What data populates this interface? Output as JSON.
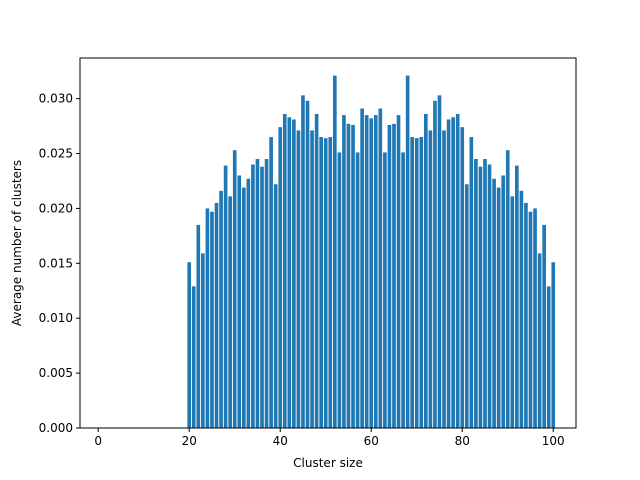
{
  "chart_data": {
    "type": "bar",
    "title": "",
    "xlabel": "Cluster size",
    "ylabel": "Average number of clusters",
    "xlim": [
      -4,
      105
    ],
    "ylim": [
      0,
      0.0337
    ],
    "xticks": [
      0,
      20,
      40,
      60,
      80,
      100
    ],
    "xtick_labels": [
      "0",
      "20",
      "40",
      "60",
      "80",
      "100"
    ],
    "yticks": [
      0,
      0.005,
      0.01,
      0.015,
      0.02,
      0.025,
      0.03
    ],
    "ytick_labels": [
      "0.000",
      "0.005",
      "0.010",
      "0.015",
      "0.020",
      "0.025",
      "0.030"
    ],
    "grid": false,
    "bar_color": "#1f77b4",
    "bar_width": 0.8,
    "x": [
      20,
      21,
      22,
      23,
      24,
      25,
      26,
      27,
      28,
      29,
      30,
      31,
      32,
      33,
      34,
      35,
      36,
      37,
      38,
      39,
      40,
      41,
      42,
      43,
      44,
      45,
      46,
      47,
      48,
      49,
      50,
      51,
      52,
      53,
      54,
      55,
      56,
      57,
      58,
      59,
      60,
      61,
      62,
      63,
      64,
      65,
      66,
      67,
      68,
      69,
      70,
      71,
      72,
      73,
      74,
      75,
      76,
      77,
      78,
      79,
      80,
      81,
      82,
      83,
      84,
      85,
      86,
      87,
      88,
      89,
      90,
      91,
      92,
      93,
      94,
      95,
      96,
      97,
      98,
      99,
      100
    ],
    "values": [
      0.0151,
      0.0129,
      0.0185,
      0.0159,
      0.02,
      0.0197,
      0.0205,
      0.0216,
      0.0239,
      0.0211,
      0.0253,
      0.023,
      0.0219,
      0.0227,
      0.024,
      0.0245,
      0.0238,
      0.0245,
      0.0265,
      0.0222,
      0.0274,
      0.0286,
      0.0283,
      0.0281,
      0.0271,
      0.0303,
      0.0298,
      0.0271,
      0.0286,
      0.0265,
      0.0264,
      0.0265,
      0.0321,
      0.0251,
      0.0285,
      0.0277,
      0.0276,
      0.0251,
      0.0291,
      0.0285,
      0.0282,
      0.0285,
      0.0291,
      0.0251,
      0.0276,
      0.0277,
      0.0285,
      0.0251,
      0.0321,
      0.0265,
      0.0264,
      0.0265,
      0.0286,
      0.0271,
      0.0298,
      0.0303,
      0.0271,
      0.0281,
      0.0283,
      0.0286,
      0.0274,
      0.0222,
      0.0265,
      0.0245,
      0.0238,
      0.0245,
      0.024,
      0.0227,
      0.0219,
      0.023,
      0.0253,
      0.0211,
      0.0239,
      0.0216,
      0.0205,
      0.0197,
      0.02,
      0.0159,
      0.0185,
      0.0129,
      0.0151
    ]
  }
}
